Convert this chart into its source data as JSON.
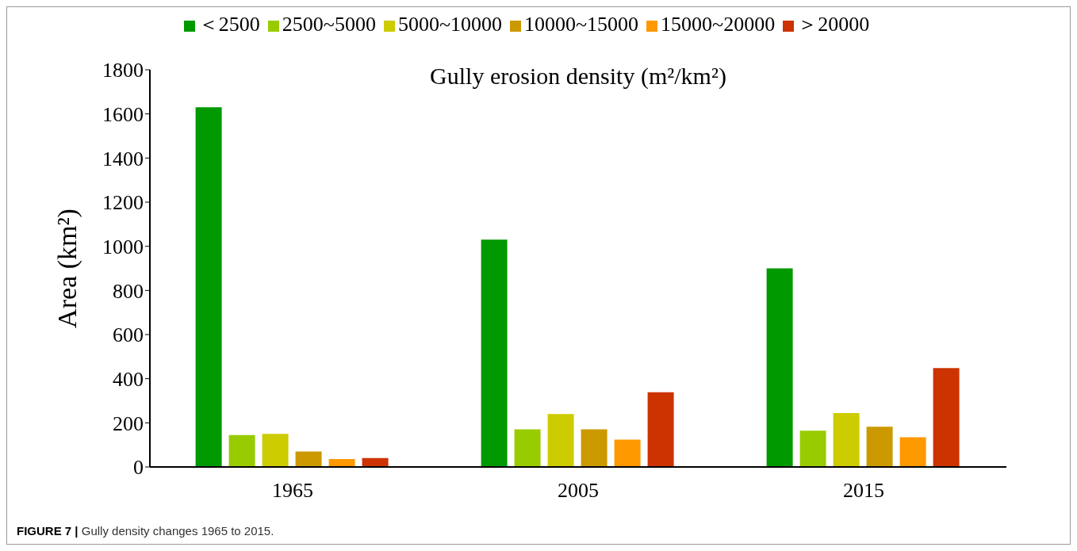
{
  "chart_data": {
    "type": "bar",
    "categories": [
      "1965",
      "2005",
      "2015"
    ],
    "series": [
      {
        "name": "＜2500",
        "color": "#009900",
        "values": [
          1630,
          1030,
          900
        ]
      },
      {
        "name": "2500~5000",
        "color": "#99cc00",
        "values": [
          145,
          171,
          164
        ]
      },
      {
        "name": "5000~10000",
        "color": "#cccc00",
        "values": [
          150,
          240,
          244
        ]
      },
      {
        "name": "10000~15000",
        "color": "#cc9900",
        "values": [
          70,
          171,
          182
        ]
      },
      {
        "name": "15000~20000",
        "color": "#ff9900",
        "values": [
          36,
          124,
          135
        ]
      },
      {
        "name": "＞20000",
        "color": "#cc3300",
        "values": [
          40,
          339,
          448
        ]
      }
    ],
    "ylabel": "Area (km²)",
    "legend_title": "Gully erosion density (m²/km²)",
    "ylim": [
      0,
      1800
    ],
    "yticks": [
      0,
      200,
      400,
      600,
      800,
      1000,
      1200,
      1400,
      1600,
      1800
    ],
    "grid": false,
    "legend": "top",
    "annotations": [
      "FIGURE 7 | Gully density changes 1965 to 2015."
    ]
  }
}
